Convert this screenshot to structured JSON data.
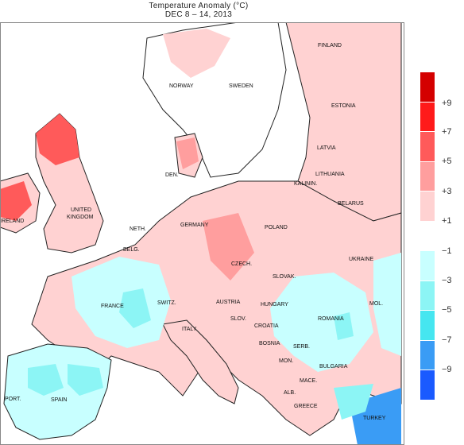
{
  "title": "Temperature Anomaly (°C)",
  "subtitle": "DEC 8 – 14, 2013",
  "countries": [
    "FINLAND",
    "NORWAY",
    "SWEDEN",
    "ESTONIA",
    "LATVIA",
    "LITHUANIA",
    "KALININ.",
    "BELARUS",
    "DEN.",
    "UNITED",
    "KINGDOM",
    "IRELAND",
    "NETH.",
    "BELG.",
    "GERMANY",
    "POLAND",
    "CZECH.",
    "SLOVAK.",
    "UKRAINE",
    "FRANCE",
    "SWITZ.",
    "AUSTRIA",
    "HUNGARY",
    "SLOV.",
    "ROMANIA",
    "MOL.",
    "ITALY",
    "CROATIA",
    "BOSNIA",
    "SERB.",
    "MON.",
    "BULGARIA",
    "MACE.",
    "ALB.",
    "GREECE",
    "SPAIN",
    "PORT.",
    "TURKEY"
  ],
  "legend": {
    "colors": [
      "#d40000",
      "#ff1a1a",
      "#ff5a5a",
      "#ff9e9e",
      "#ffd2d2",
      "#ffffff",
      "#c8ffff",
      "#8cf5f5",
      "#46e6f0",
      "#3a9cf5",
      "#1a5aff",
      "#0a14ff"
    ],
    "labels": [
      "+9",
      "+7",
      "+5",
      "+3",
      "+1",
      "−1",
      "−3",
      "−5",
      "−7",
      "−9"
    ]
  }
}
